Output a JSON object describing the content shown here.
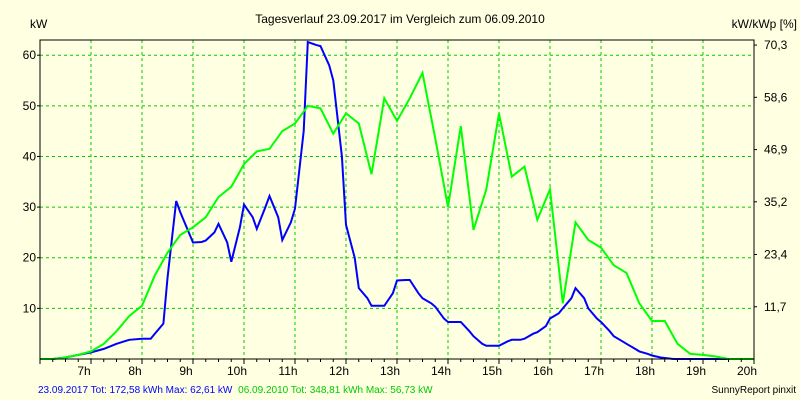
{
  "chart_data": {
    "type": "line",
    "title": "Tagesverlauf 23.09.2017 im Vergleich zum 06.09.2010",
    "ylabel_left": "kW",
    "ylabel_right": "kW/kWp [%]",
    "xlim": [
      6,
      20
    ],
    "ylim": [
      0,
      63
    ],
    "x_ticks": [
      7,
      8,
      9,
      10,
      11,
      12,
      13,
      14,
      15,
      16,
      17,
      18,
      19,
      20
    ],
    "x_tick_labels": [
      "7h",
      "8h",
      "9h",
      "10h",
      "11h",
      "12h",
      "13h",
      "14h",
      "15h",
      "16h",
      "17h",
      "18h",
      "19h",
      "20h"
    ],
    "y_ticks_left": [
      10,
      20,
      30,
      40,
      50,
      60
    ],
    "y_tick_labels_left": [
      "10",
      "20",
      "30",
      "40",
      "50",
      "60"
    ],
    "y_ticks_right": [
      11.7,
      23.4,
      35.2,
      46.9,
      58.6,
      70.3
    ],
    "y_tick_labels_right": [
      "11,7",
      "23,4",
      "35,2",
      "46,9",
      "58,6",
      "70,3"
    ],
    "right_axis_max_value": 62,
    "grid": true,
    "series": [
      {
        "color": "#0000ff",
        "x": [
          6,
          6.25,
          6.5,
          6.75,
          7,
          7.25,
          7.5,
          7.75,
          8,
          8.17,
          8.25,
          8.42,
          8.5,
          8.67,
          8.75,
          9,
          9.17,
          9.25,
          9.42,
          9.5,
          9.67,
          9.75,
          9.92,
          10,
          10.17,
          10.25,
          10.42,
          10.5,
          10.67,
          10.75,
          10.92,
          11,
          11.17,
          11.25,
          11.42,
          11.5,
          11.67,
          11.75,
          11.92,
          12,
          12.17,
          12.25,
          12.42,
          12.5,
          12.67,
          12.75,
          12.92,
          13,
          13.17,
          13.25,
          13.42,
          13.5,
          13.67,
          13.75,
          13.92,
          14,
          14.17,
          14.25,
          14.42,
          14.5,
          14.67,
          14.75,
          14.92,
          15,
          15.17,
          15.25,
          15.42,
          15.5,
          15.67,
          15.75,
          15.92,
          16,
          16.17,
          16.25,
          16.42,
          16.5,
          16.67,
          16.75,
          16.92,
          17,
          17.17,
          17.25,
          17.42,
          17.5,
          17.67,
          17.75,
          17.92,
          18,
          18.17,
          18.25,
          18.42,
          18.5,
          18.67,
          18.75,
          18.92,
          19,
          19.5,
          20
        ],
        "y": [
          0,
          0,
          0.3,
          0.8,
          1.3,
          2,
          3,
          3.8,
          4,
          4,
          5,
          7,
          16,
          31.2,
          29,
          23,
          23.1,
          23.4,
          25,
          26.7,
          23,
          19.2,
          26,
          30.5,
          28,
          25.7,
          30,
          32.2,
          28,
          23.5,
          27,
          29.7,
          45,
          62.6,
          62,
          61.8,
          58,
          55,
          40,
          26.5,
          20,
          14,
          12,
          10.5,
          10.5,
          10.5,
          13,
          15.5,
          15.6,
          15.6,
          13,
          12,
          11,
          10.3,
          8,
          7.3,
          7.3,
          7.3,
          5.5,
          4.5,
          3,
          2.6,
          2.6,
          2.6,
          3.5,
          3.8,
          3.8,
          4,
          5,
          5.3,
          6.5,
          8,
          9,
          10,
          12,
          14,
          12,
          10,
          8,
          7.3,
          5.5,
          4.5,
          3.5,
          3,
          2,
          1.5,
          1,
          0.7,
          0.3,
          0.2,
          0,
          0,
          0,
          0,
          0,
          0,
          0,
          0
        ]
      },
      {
        "color": "#00ff00",
        "x": [
          6,
          6.25,
          6.5,
          6.75,
          7,
          7.25,
          7.5,
          7.75,
          8,
          8.25,
          8.5,
          8.75,
          9,
          9.25,
          9.5,
          9.75,
          10,
          10.25,
          10.5,
          10.75,
          11,
          11.25,
          11.5,
          11.75,
          12,
          12.25,
          12.5,
          12.75,
          13,
          13.25,
          13.5,
          13.75,
          14,
          14.25,
          14.5,
          14.75,
          15,
          15.25,
          15.5,
          15.75,
          16,
          16.25,
          16.5,
          16.75,
          17,
          17.25,
          17.5,
          17.75,
          18,
          18.25,
          18.5,
          18.75,
          19,
          19.25,
          19.5,
          19.75,
          20
        ],
        "y": [
          0,
          0,
          0.3,
          0.8,
          1.5,
          3,
          5.5,
          8.5,
          10.5,
          16.5,
          21,
          24.5,
          26,
          28,
          32,
          34,
          38.5,
          41,
          41.5,
          45,
          46.5,
          50,
          49.5,
          44.5,
          48.5,
          46.5,
          36.5,
          51.5,
          47,
          51.5,
          56.5,
          43.5,
          30,
          46,
          25.5,
          33.5,
          48.5,
          36,
          38,
          27.5,
          33.5,
          11,
          27,
          23.5,
          22,
          18.5,
          17,
          11,
          7.5,
          7.5,
          3,
          1,
          0.8,
          0.5,
          0,
          0,
          0
        ]
      }
    ],
    "footer_stats": [
      {
        "text": "23.09.2017 Tot: 172,58 kWh Max: 62,61 kW",
        "color": "#0000ff"
      },
      {
        "text": "06.09.2010 Tot: 348,81 kWh Max: 56,73 kW",
        "color": "#00cc00"
      }
    ],
    "credit": "SunnyReport pinxit"
  }
}
